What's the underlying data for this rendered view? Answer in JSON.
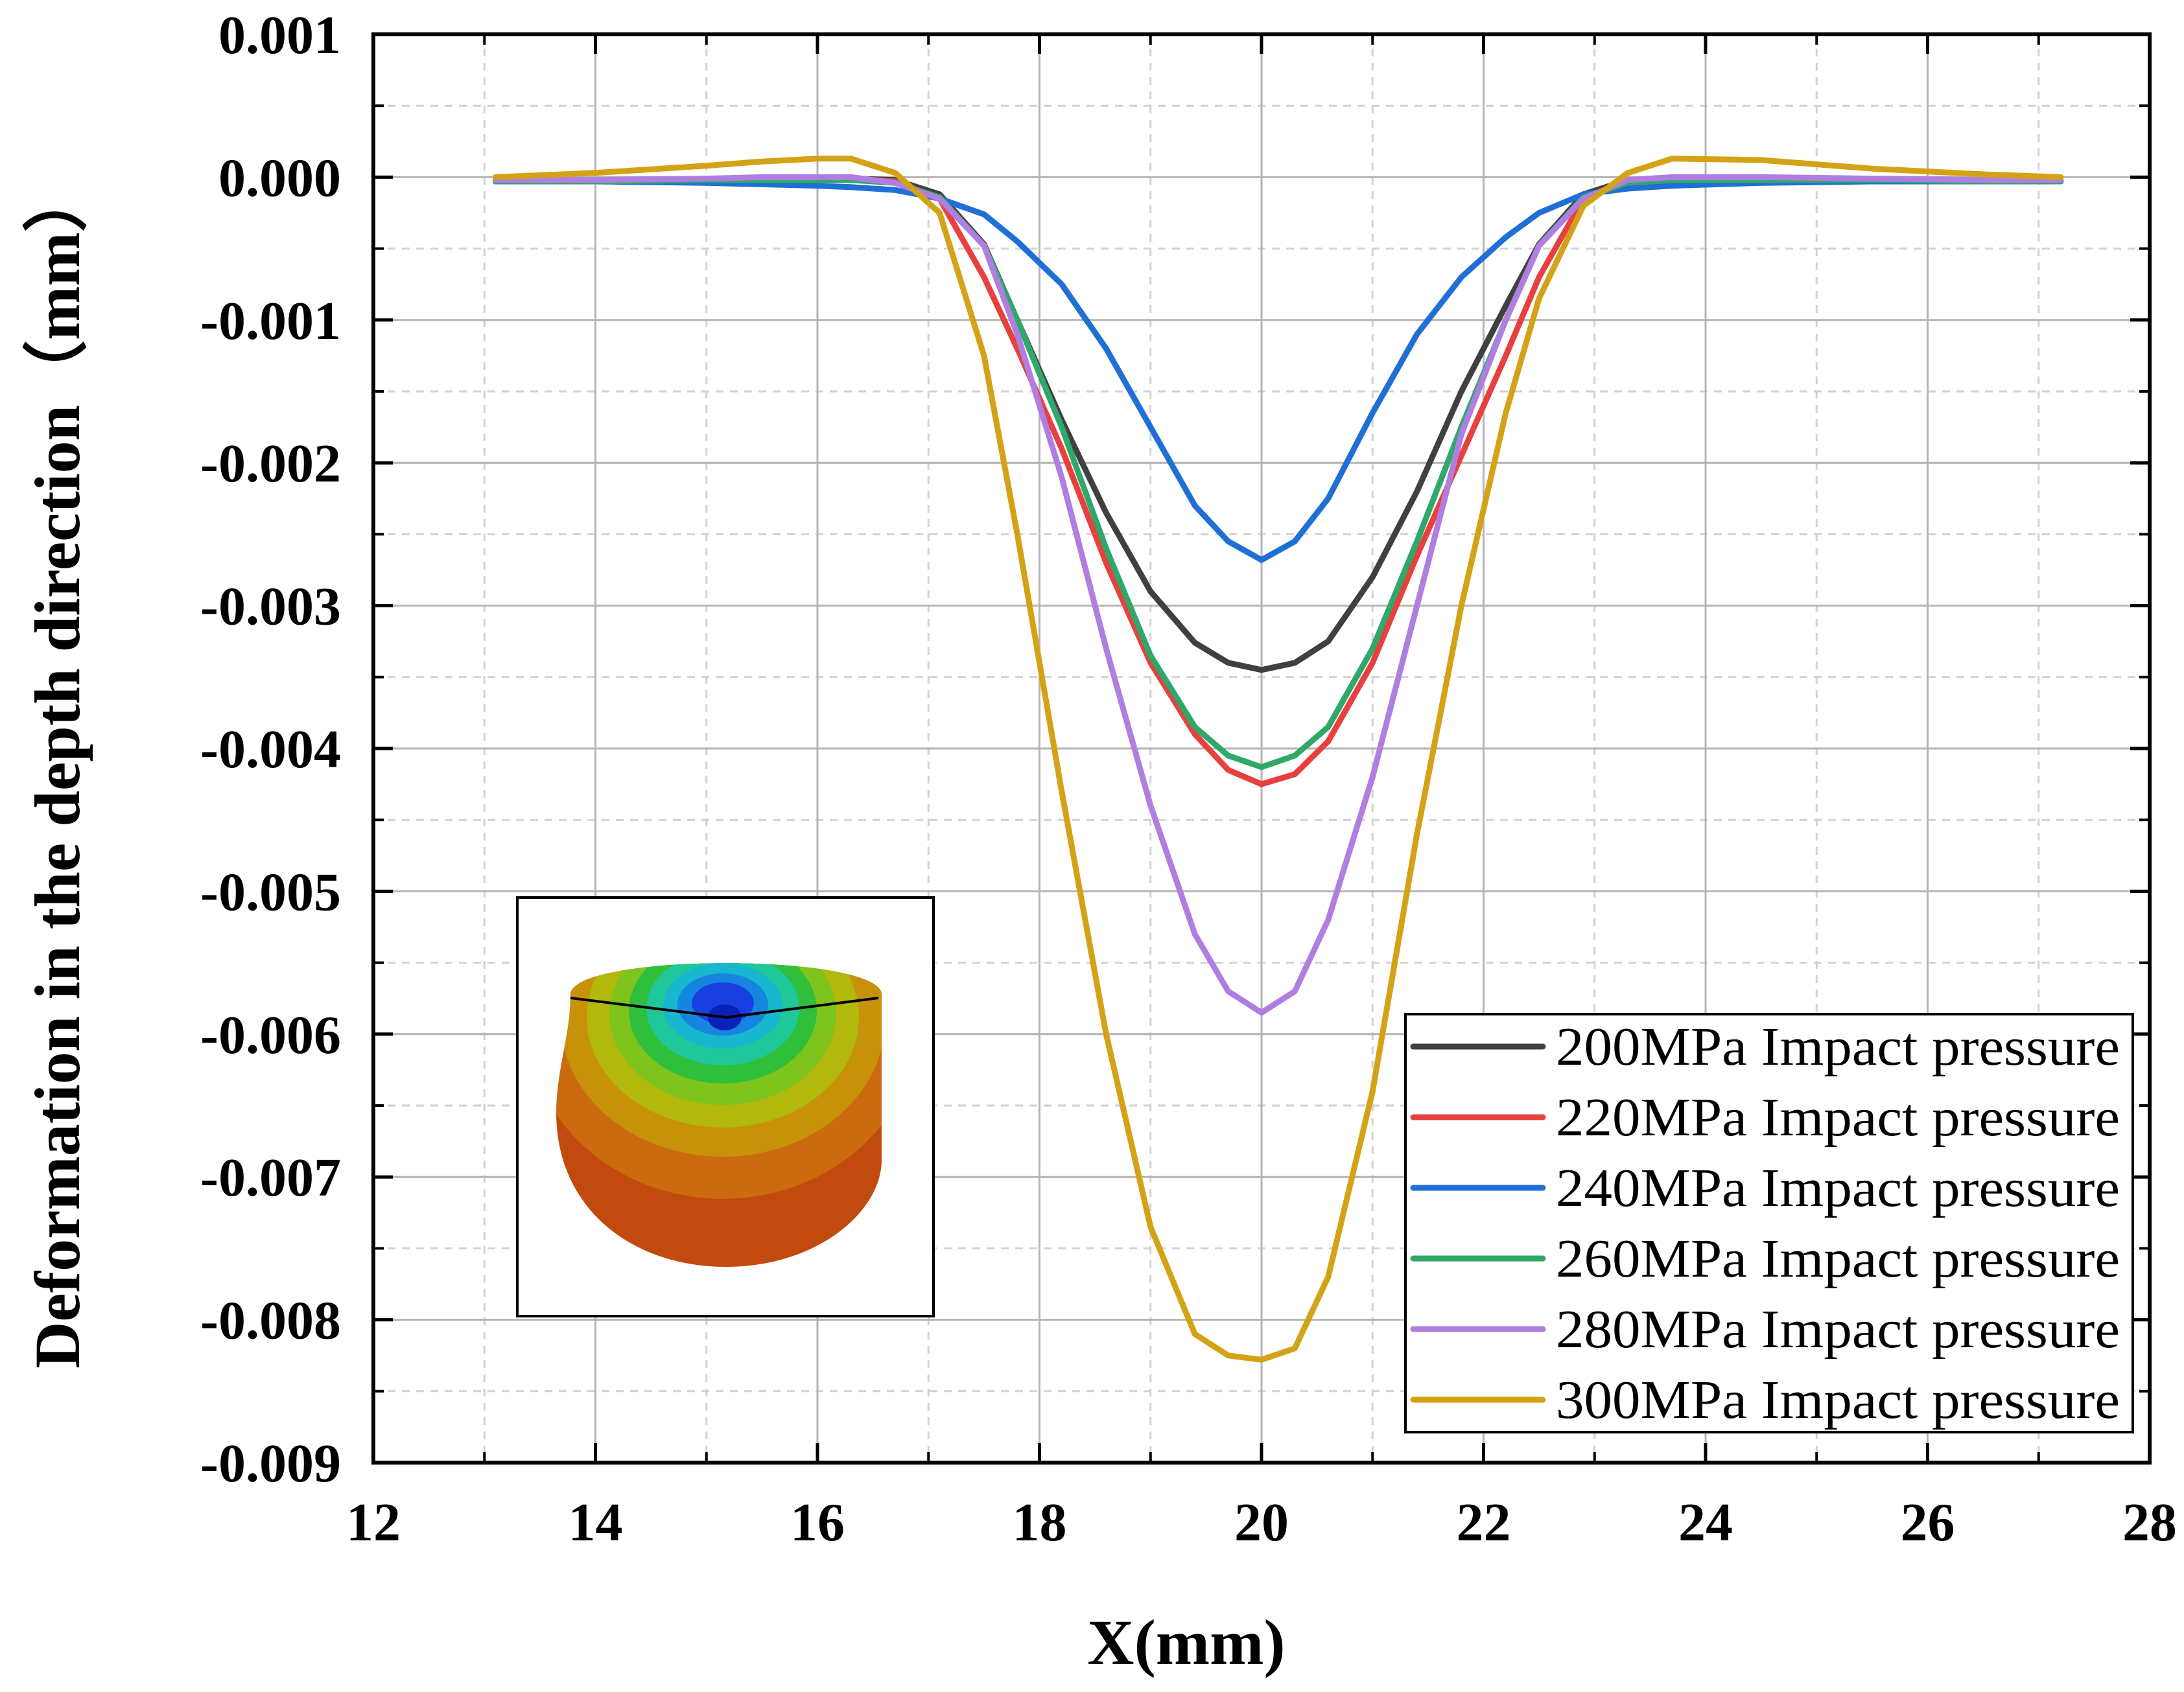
{
  "chart_data": {
    "type": "line",
    "title": "",
    "xlabel": "X(mm)",
    "ylabel": "Deformation in the depth direction（mm）",
    "xlim": [
      12,
      28
    ],
    "ylim": [
      -0.009,
      0.001
    ],
    "xticks": [
      12,
      14,
      16,
      18,
      20,
      22,
      24,
      26,
      28
    ],
    "xtick_labels": [
      "12",
      "14",
      "16",
      "18",
      "20",
      "22",
      "24",
      "26",
      "28"
    ],
    "yticks": [
      0.001,
      0.0,
      -0.001,
      -0.002,
      -0.003,
      -0.004,
      -0.005,
      -0.006,
      -0.007,
      -0.008,
      -0.009
    ],
    "ytick_labels": [
      "0.001",
      "0.000",
      "-0.001",
      "-0.002",
      "-0.003",
      "-0.004",
      "-0.005",
      "-0.006",
      "-0.007",
      "-0.008",
      "-0.009"
    ],
    "grid": true,
    "legend_position": "bottom-right",
    "inset": "contour plot of deformation (blue center, red outer)",
    "x": [
      13.1,
      14.0,
      15.0,
      15.5,
      16.0,
      16.3,
      16.7,
      17.1,
      17.5,
      17.8,
      18.2,
      18.6,
      19.0,
      19.4,
      19.7,
      20.0,
      20.3,
      20.6,
      21.0,
      21.4,
      21.8,
      22.2,
      22.5,
      22.9,
      23.3,
      23.7,
      24.5,
      25.5,
      26.5,
      27.2
    ],
    "series": [
      {
        "name": "200MPa Impact pressure",
        "color": "#404040",
        "values": [
          -3e-05,
          -3e-05,
          -2e-05,
          -2e-05,
          -1e-05,
          -1e-05,
          -2e-05,
          -0.00012,
          -0.00047,
          -0.001,
          -0.0017,
          -0.00235,
          -0.0029,
          -0.00326,
          -0.0034,
          -0.00345,
          -0.0034,
          -0.00325,
          -0.0028,
          -0.0022,
          -0.0015,
          -0.0009,
          -0.00047,
          -0.00012,
          -2e-05,
          -1e-05,
          -2e-05,
          -2e-05,
          -3e-05,
          -3e-05
        ]
      },
      {
        "name": "220MPa Impact pressure",
        "color": "#e8403f",
        "values": [
          -3e-05,
          -3e-05,
          -2e-05,
          -2e-05,
          -1e-05,
          -1e-05,
          -3e-05,
          -0.00015,
          -0.0007,
          -0.0012,
          -0.0019,
          -0.0027,
          -0.0034,
          -0.0039,
          -0.00415,
          -0.00425,
          -0.00418,
          -0.00395,
          -0.0034,
          -0.00265,
          -0.00195,
          -0.00125,
          -0.0007,
          -0.00015,
          -3e-05,
          -1e-05,
          -2e-05,
          -2e-05,
          -3e-05,
          -3e-05
        ]
      },
      {
        "name": "240MPa Impact pressure",
        "color": "#1f6fd6",
        "values": [
          -3e-05,
          -3e-05,
          -4e-05,
          -5e-05,
          -6e-05,
          -7e-05,
          -9e-05,
          -0.00015,
          -0.00026,
          -0.00045,
          -0.00075,
          -0.0012,
          -0.00175,
          -0.0023,
          -0.00255,
          -0.00268,
          -0.00255,
          -0.00225,
          -0.00165,
          -0.0011,
          -0.0007,
          -0.00042,
          -0.00025,
          -0.00012,
          -8e-05,
          -6e-05,
          -4e-05,
          -3e-05,
          -3e-05,
          -3e-05
        ]
      },
      {
        "name": "260MPa Impact pressure",
        "color": "#2fa86a",
        "values": [
          -3e-05,
          -3e-05,
          -2e-05,
          -2e-05,
          -2e-05,
          -2e-05,
          -4e-05,
          -0.00014,
          -0.00048,
          -0.001,
          -0.00175,
          -0.0026,
          -0.00335,
          -0.00385,
          -0.00405,
          -0.00413,
          -0.00405,
          -0.00385,
          -0.0033,
          -0.00255,
          -0.00175,
          -0.001,
          -0.00048,
          -0.00014,
          -4e-05,
          -2e-05,
          -2e-05,
          -2e-05,
          -3e-05,
          -3e-05
        ]
      },
      {
        "name": "280MPa Impact pressure",
        "color": "#b07ee0",
        "values": [
          -2e-05,
          -2e-05,
          -1e-05,
          0.0,
          0.0,
          0.0,
          -4e-05,
          -0.00015,
          -0.00048,
          -0.0011,
          -0.0021,
          -0.0033,
          -0.0044,
          -0.0053,
          -0.0057,
          -0.00585,
          -0.0057,
          -0.0052,
          -0.0042,
          -0.003,
          -0.0018,
          -0.001,
          -0.00048,
          -0.00015,
          -2e-05,
          0.0,
          0.0,
          -1e-05,
          -2e-05,
          -2e-05
        ]
      },
      {
        "name": "300MPa Impact pressure",
        "color": "#d4a216",
        "values": [
          0.0,
          3e-05,
          8e-05,
          0.00011,
          0.00013,
          0.00013,
          3e-05,
          -0.00025,
          -0.00125,
          -0.0025,
          -0.0043,
          -0.006,
          -0.00735,
          -0.0081,
          -0.00825,
          -0.00828,
          -0.0082,
          -0.0077,
          -0.0064,
          -0.0046,
          -0.003,
          -0.00165,
          -0.00085,
          -0.0002,
          3e-05,
          0.00013,
          0.00012,
          6e-05,
          2e-05,
          0.0
        ]
      }
    ]
  }
}
